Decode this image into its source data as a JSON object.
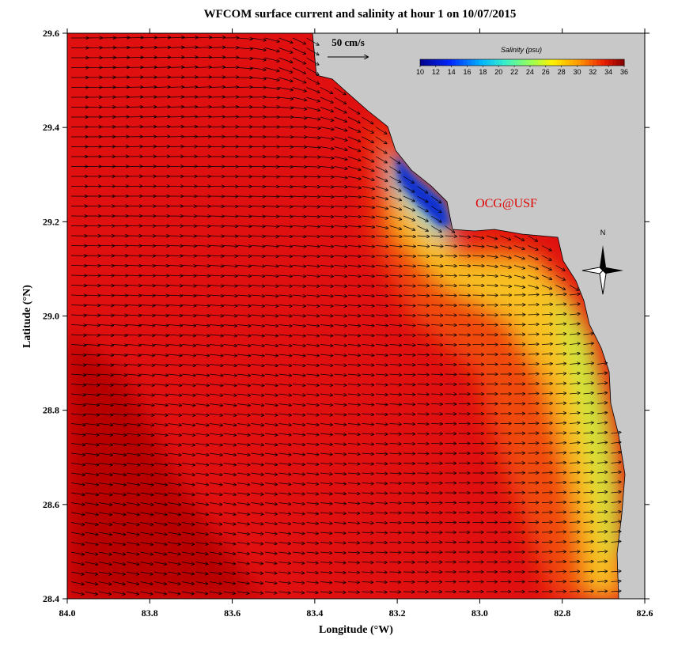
{
  "chart_data": {
    "type": "map",
    "title": "WFCOM surface current and salinity at hour 1 on 10/07/2015",
    "xlabel": "Longitude (°W)",
    "ylabel": "Latitude (°N)",
    "xlim": [
      84.0,
      82.6
    ],
    "ylim": [
      28.4,
      29.6
    ],
    "xticks": [
      {
        "value": 84.0,
        "label": "84.0"
      },
      83.8,
      83.6,
      83.4,
      83.2,
      {
        "value": 83.0,
        "label": "83.0"
      },
      82.8,
      82.6
    ],
    "yticks": [
      28.4,
      28.6,
      28.8,
      {
        "value": 29.0,
        "label": "29.0"
      },
      29.2,
      29.4,
      29.6
    ],
    "colorbar": {
      "label": "Salinity (psu)",
      "clim": [
        10,
        36
      ],
      "ticks": [
        10,
        12,
        14,
        16,
        18,
        20,
        22,
        24,
        26,
        28,
        30,
        32,
        34,
        36
      ]
    },
    "scale_arrow": "50 cm/s",
    "annotation": "OCG@USF",
    "north": "N"
  }
}
